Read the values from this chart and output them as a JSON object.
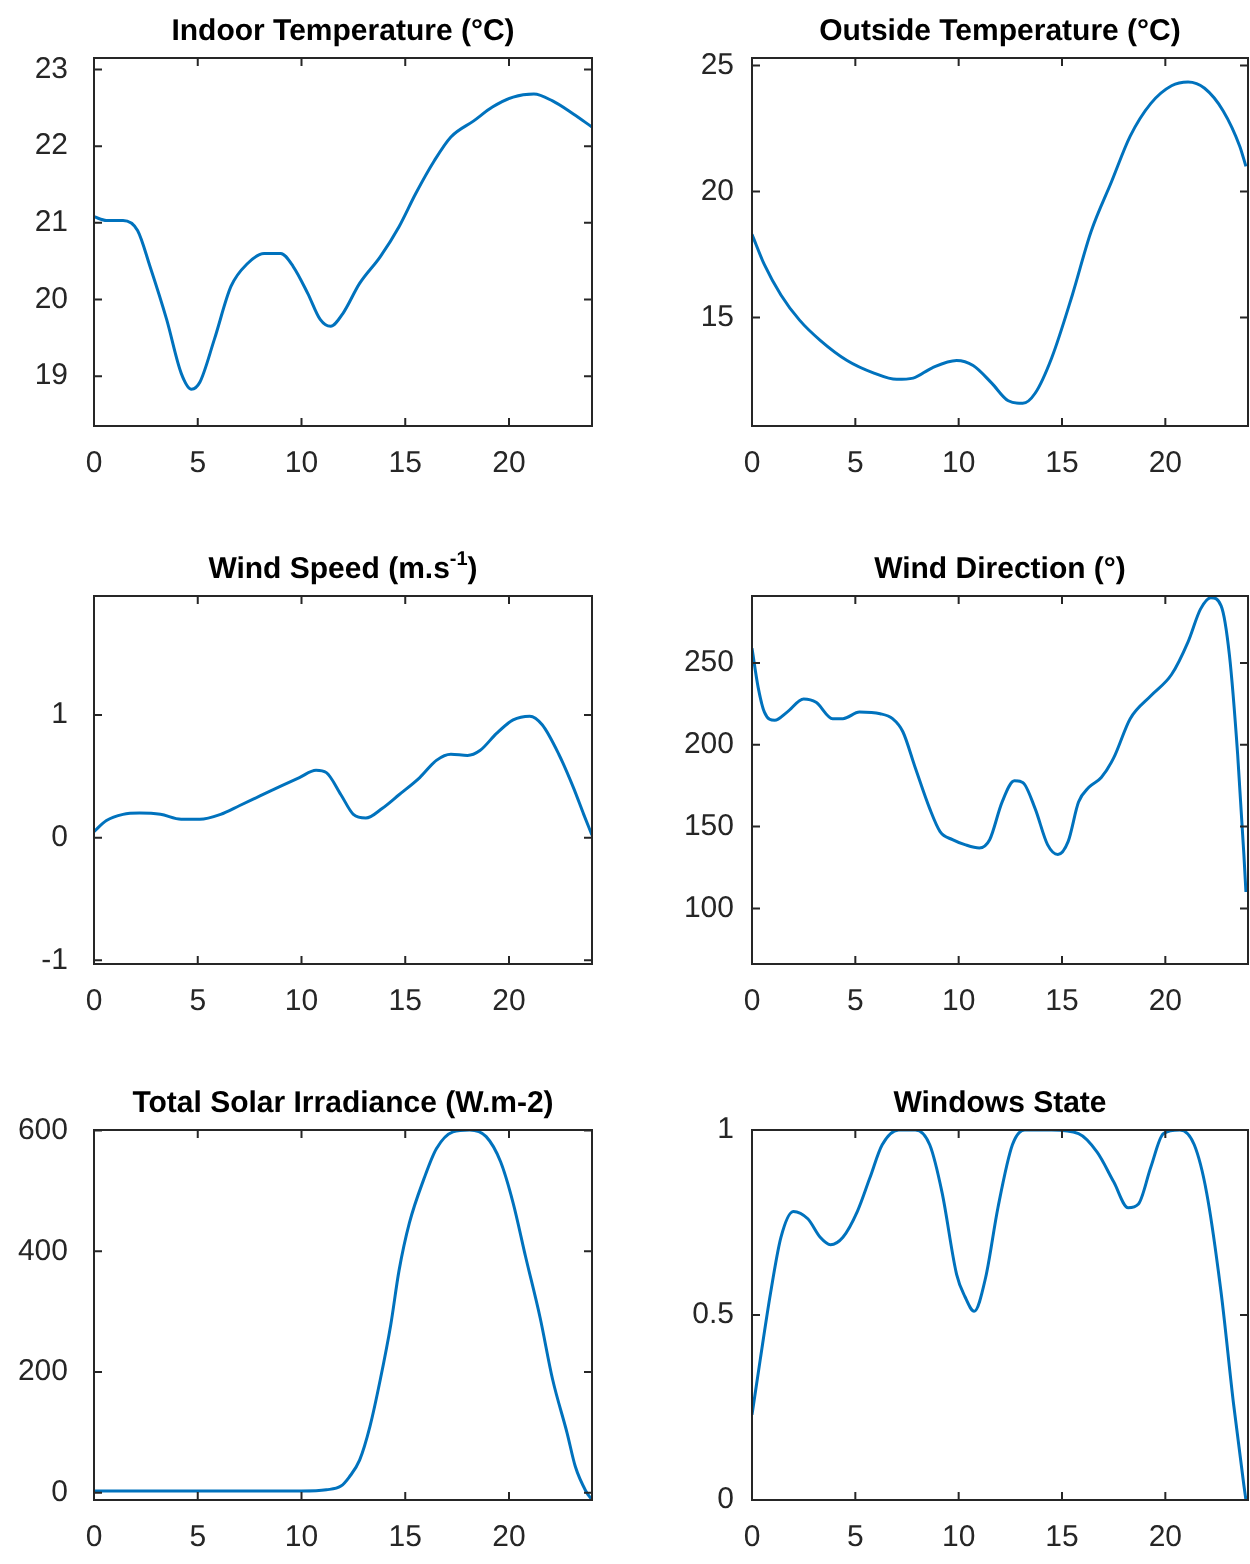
{
  "chart_data": [
    {
      "type": "line",
      "title": "Indoor Temperature (°C)",
      "x": [
        0,
        0.6,
        1.4,
        2.1,
        2.7,
        3.5,
        4.2,
        4.7,
        5.1,
        5.8,
        6.6,
        7.4,
        8.2,
        9,
        9.6,
        10.3,
        10.9,
        11.4,
        12,
        12.8,
        13.8,
        14.7,
        15.5,
        16.4,
        17.2,
        18.3,
        19.2,
        20.2,
        21.2,
        22.1,
        23.1,
        24
      ],
      "values": [
        21.08,
        21.03,
        21.03,
        20.9,
        20.43,
        19.74,
        19.04,
        18.83,
        18.92,
        19.48,
        20.17,
        20.47,
        20.6,
        20.6,
        20.43,
        20.08,
        19.74,
        19.65,
        19.82,
        20.21,
        20.56,
        20.95,
        21.38,
        21.81,
        22.12,
        22.33,
        22.51,
        22.64,
        22.68,
        22.59,
        22.42,
        22.25
      ],
      "color": "#0072bd",
      "xlim": [
        0,
        24
      ],
      "xticks": [
        0,
        5,
        10,
        15,
        20
      ],
      "ylim": [
        18.35,
        23.15
      ],
      "yticks": [
        19,
        20,
        21,
        22,
        23
      ]
    },
    {
      "type": "line",
      "title": "Outside Temperature (°C)",
      "x": [
        0,
        0.6,
        1.4,
        2.3,
        3.3,
        4.6,
        5.9,
        7,
        7.8,
        8.7,
        9.9,
        10.7,
        11.6,
        12.4,
        13.1,
        13.7,
        14.5,
        15.5,
        16.4,
        17.4,
        18.3,
        19.3,
        20.3,
        21.1,
        21.9,
        22.8,
        23.6,
        23.9
      ],
      "values": [
        18.3,
        17.1,
        15.9,
        14.9,
        14.1,
        13.3,
        12.8,
        12.55,
        12.6,
        13,
        13.3,
        13.1,
        12.4,
        11.7,
        11.6,
        12,
        13.4,
        15.9,
        18.4,
        20.4,
        22.2,
        23.5,
        24.2,
        24.35,
        24.1,
        23.2,
        21.8,
        21
      ],
      "color": "#0072bd",
      "xlim": [
        0,
        24
      ],
      "xticks": [
        0,
        5,
        10,
        15,
        20
      ],
      "ylim": [
        10.7,
        25.3
      ],
      "yticks": [
        15,
        20,
        25
      ]
    },
    {
      "type": "line",
      "title": "Wind Speed (m.s$^{-1}$)",
      "x": [
        0,
        0.6,
        1.4,
        2.2,
        3.2,
        4.2,
        5.1,
        6.1,
        7,
        8,
        9,
        9.9,
        10.7,
        11.2,
        11.9,
        12.5,
        13.1,
        13.9,
        14.7,
        15.7,
        16.5,
        17.2,
        18,
        18.6,
        19.4,
        20.2,
        21,
        21.6,
        22.4,
        23.1,
        23.6,
        24
      ],
      "values": [
        0.05,
        0.14,
        0.19,
        0.2,
        0.19,
        0.15,
        0.15,
        0.19,
        0.26,
        0.34,
        0.42,
        0.49,
        0.55,
        0.53,
        0.35,
        0.19,
        0.16,
        0.24,
        0.35,
        0.49,
        0.63,
        0.68,
        0.67,
        0.71,
        0.85,
        0.96,
        0.99,
        0.92,
        0.68,
        0.41,
        0.19,
        0.02
      ],
      "color": "#0072bd",
      "xlim": [
        0,
        24
      ],
      "xticks": [
        0,
        5,
        10,
        15,
        20
      ],
      "ylim": [
        -1.03,
        1.97
      ],
      "yticks": [
        -1,
        0,
        1
      ]
    },
    {
      "type": "line",
      "title": "Wind Direction (°)",
      "x": [
        0,
        0.3,
        0.6,
        1.1,
        1.7,
        2.5,
        3.1,
        3.9,
        4.4,
        5.2,
        6.2,
        6.8,
        7.3,
        7.9,
        8.6,
        9.1,
        9.7,
        10.3,
        11,
        11.5,
        12.1,
        12.7,
        13.1,
        13.7,
        14.3,
        14.8,
        15.3,
        15.8,
        16.3,
        16.9,
        17.5,
        18.3,
        19.3,
        20.3,
        21.1,
        21.7,
        22.2,
        22.7,
        23.1,
        23.5,
        23.8,
        23.9
      ],
      "values": [
        259,
        235,
        220,
        215,
        220,
        228,
        226,
        216,
        216,
        220,
        219,
        216,
        208,
        186,
        161,
        147,
        142,
        139,
        137,
        142,
        165,
        178,
        177,
        161,
        139,
        133,
        141,
        165,
        174,
        180,
        192,
        216,
        230,
        243,
        263,
        283,
        290,
        285,
        255,
        194,
        133,
        110
      ],
      "color": "#0072bd",
      "xlim": [
        0,
        24
      ],
      "xticks": [
        0,
        5,
        10,
        15,
        20
      ],
      "ylim": [
        66,
        291
      ],
      "yticks": [
        100,
        150,
        200,
        250
      ]
    },
    {
      "type": "line",
      "title": "Total Solar Irradiance (W.m-2)",
      "x": [
        0,
        5,
        10,
        11.2,
        11.9,
        12.3,
        12.8,
        13.3,
        13.8,
        14.3,
        14.7,
        15.2,
        15.9,
        16.5,
        17.3,
        18.1,
        18.9,
        19.6,
        20.2,
        20.8,
        21.5,
        22.1,
        22.8,
        23.2,
        23.7,
        24
      ],
      "values": [
        3,
        3,
        3,
        5,
        11,
        26,
        54,
        110,
        188,
        278,
        368,
        447,
        520,
        570,
        598,
        601,
        590,
        548,
        480,
        391,
        290,
        188,
        99,
        43,
        3,
        -12
      ],
      "color": "#0072bd",
      "xlim": [
        0,
        24
      ],
      "xticks": [
        0,
        5,
        10,
        15,
        20
      ],
      "ylim": [
        -12,
        601
      ],
      "yticks": [
        0,
        200,
        400,
        600
      ]
    },
    {
      "type": "line",
      "title": "Windows State",
      "x": [
        0,
        0.4,
        0.9,
        1.4,
        2,
        2.7,
        3.3,
        3.8,
        4.4,
        5.1,
        5.7,
        6.3,
        7.1,
        7.9,
        8.6,
        9.2,
        9.9,
        10.3,
        10.75,
        11.3,
        11.9,
        12.6,
        13.2,
        14.5,
        15.8,
        16.7,
        17.5,
        18.2,
        18.7,
        19.3,
        19.9,
        20.7,
        21.4,
        22,
        22.7,
        23.3,
        23.8,
        23.9
      ],
      "values": [
        0.23,
        0.38,
        0.56,
        0.71,
        0.78,
        0.76,
        0.71,
        0.69,
        0.71,
        0.78,
        0.87,
        0.96,
        1,
        1,
        0.96,
        0.83,
        0.61,
        0.55,
        0.51,
        0.6,
        0.79,
        0.96,
        1,
        1,
        0.99,
        0.94,
        0.86,
        0.79,
        0.8,
        0.9,
        0.99,
        1,
        0.96,
        0.83,
        0.56,
        0.26,
        0.04,
        0
      ],
      "color": "#0072bd",
      "xlim": [
        0,
        24
      ],
      "xticks": [
        0,
        5,
        10,
        15,
        20
      ],
      "ylim": [
        0,
        1
      ],
      "yticks": [
        0,
        0.5,
        1
      ]
    }
  ]
}
